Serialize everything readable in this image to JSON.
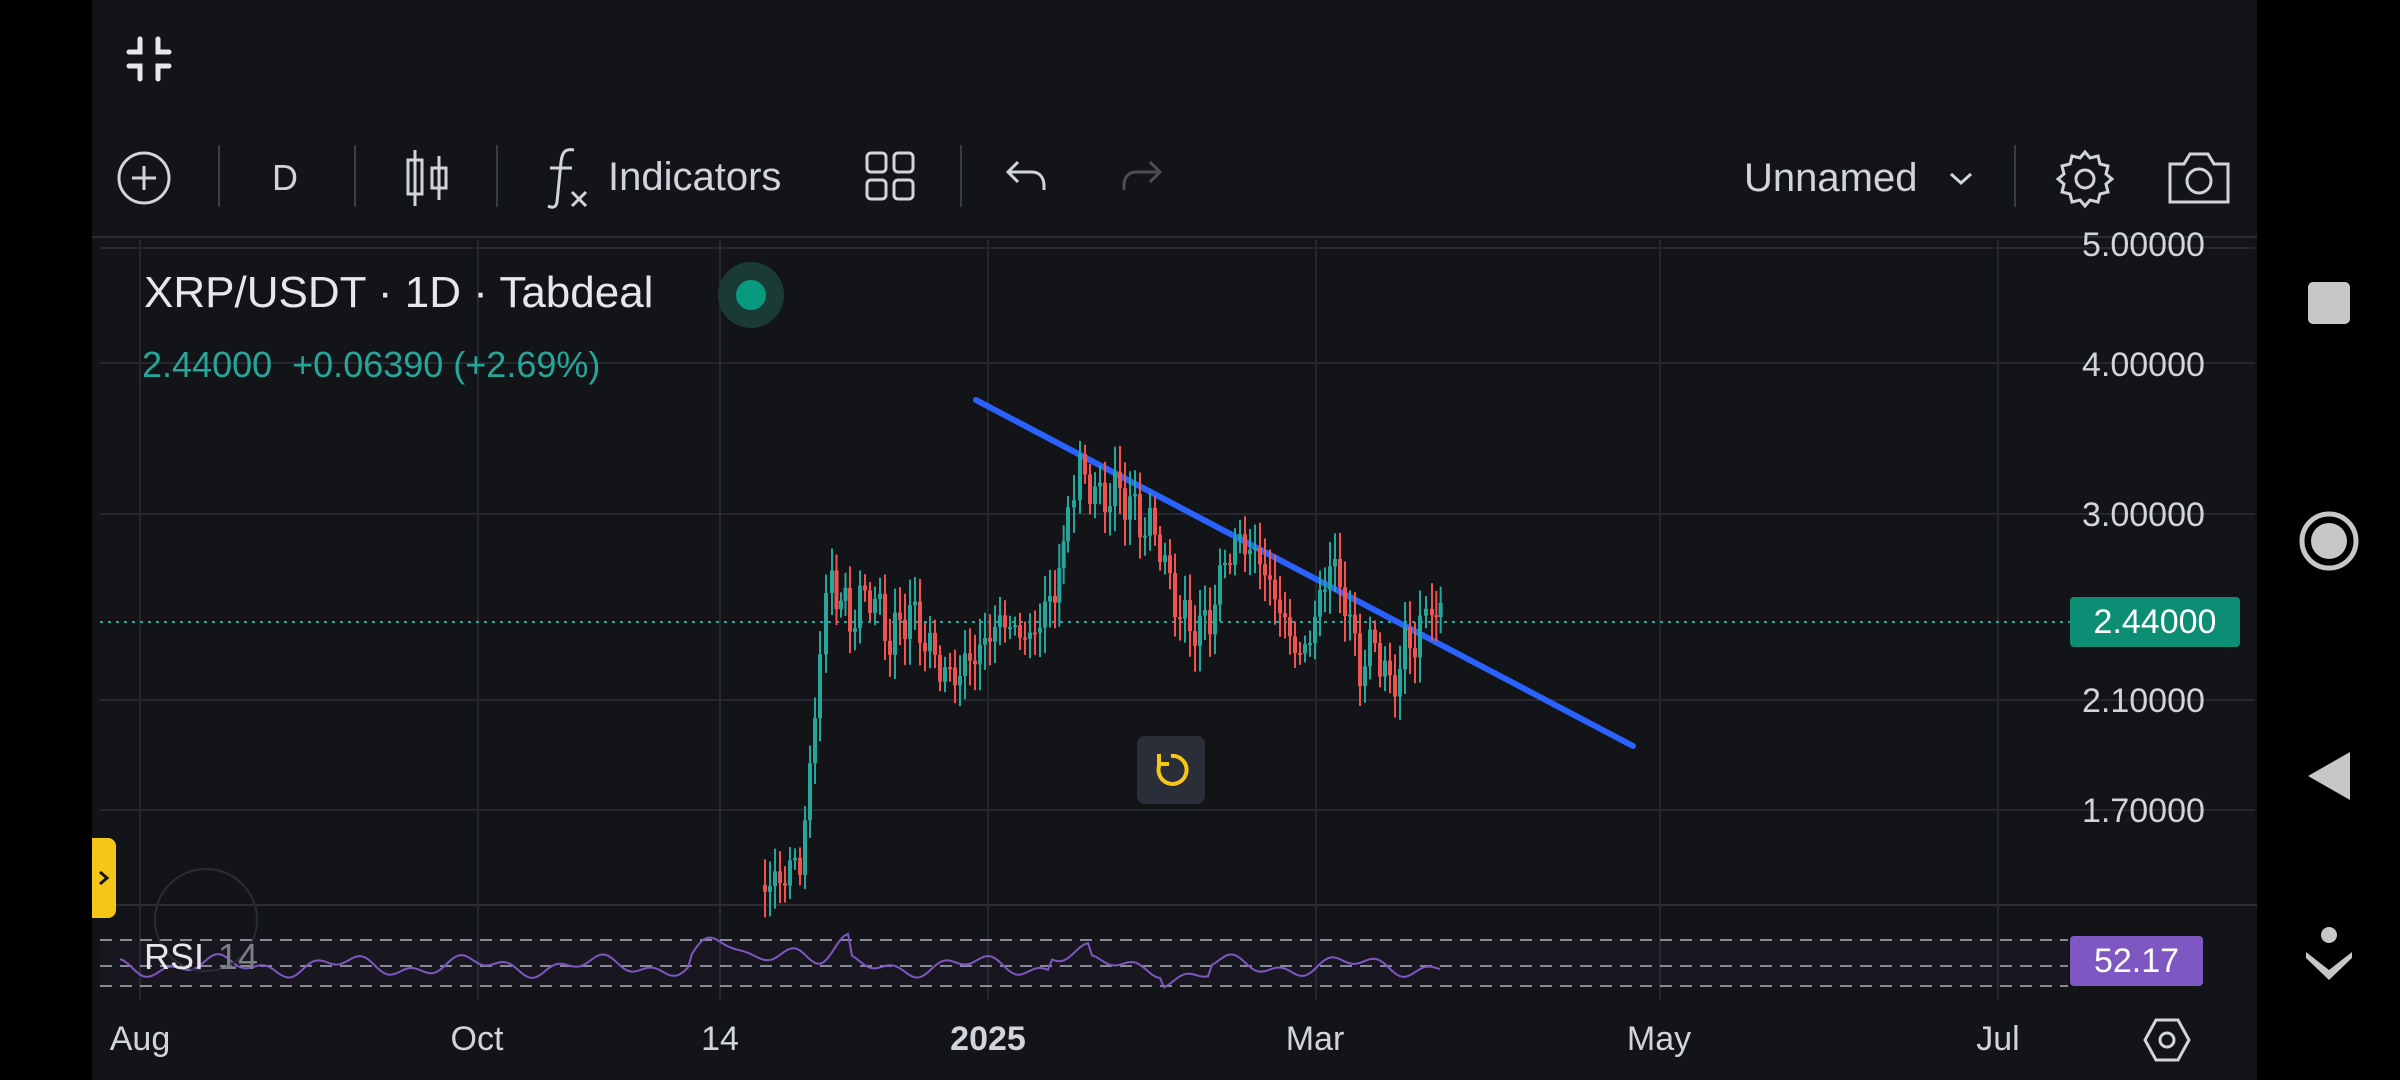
{
  "toolbar": {
    "interval": "D",
    "indicators_label": "Indicators",
    "layout_name": "Unnamed"
  },
  "legend": {
    "symbol_line": "XRP/USDT · 1D · Tabdeal",
    "last_price": "2.44000",
    "change": "+0.06390",
    "change_pct": "(+2.69%)"
  },
  "price_axis": {
    "labels": [
      "5.00000",
      "4.00000",
      "3.00000",
      "2.10000",
      "1.70000"
    ],
    "current_price": "2.44000"
  },
  "rsi": {
    "label": "RSI",
    "period": "14",
    "value": "52.17"
  },
  "time_axis": {
    "labels": [
      "Aug",
      "Oct",
      "14",
      "2025",
      "Mar",
      "May",
      "Jul"
    ]
  },
  "icons": {
    "fullscreen": "collapse-icon",
    "add": "plus-circle-icon",
    "chart_type": "candles-icon",
    "fx": "fx-icon",
    "templates": "grid-icon",
    "undo": "undo-icon",
    "redo": "redo-icon",
    "settings": "gear-icon",
    "screenshot": "camera-icon",
    "reset": "refresh-icon",
    "expand": "chevron-right-icon",
    "axis_settings": "hexagon-gear-icon"
  },
  "colors": {
    "background": "#131417",
    "up": "#26a69a",
    "down": "#ef5350",
    "trendline": "#2962ff",
    "rsi": "#7e57c2",
    "price_badge": "#0b8e74",
    "reset_icon": "#f5c518"
  }
}
